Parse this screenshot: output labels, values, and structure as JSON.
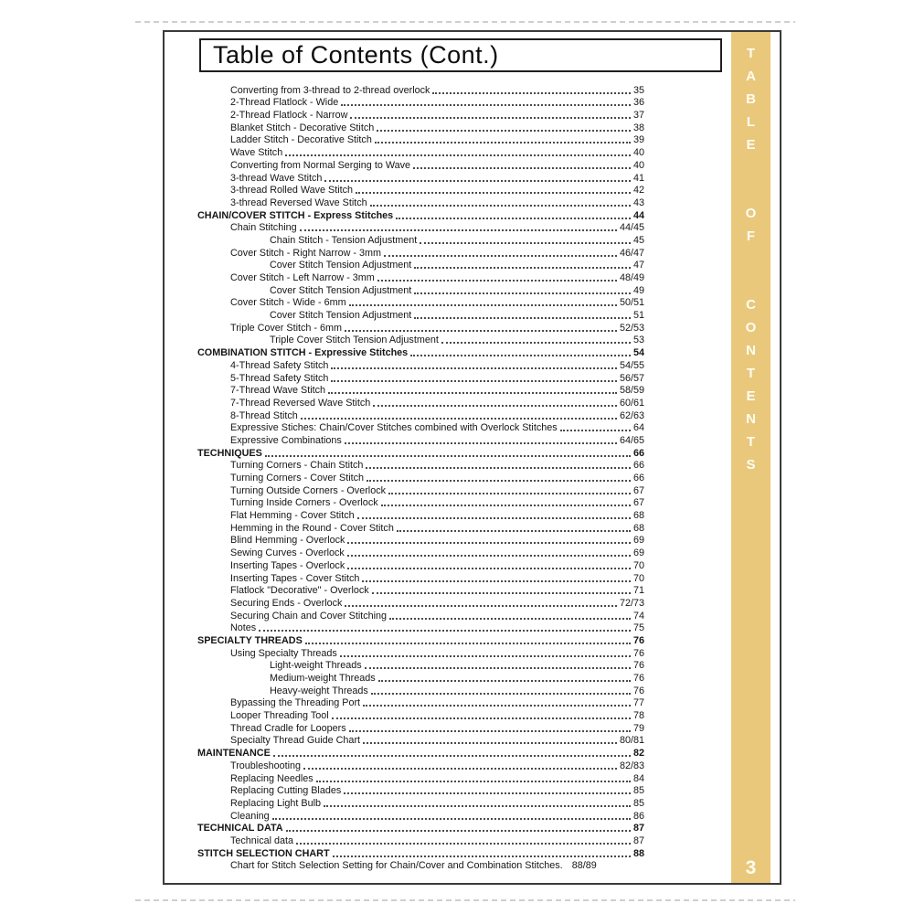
{
  "header": {
    "title": "Table of Contents (Cont.)"
  },
  "sidebar": {
    "vertical_title": "TABLE OF CONTENTS",
    "page_number": "3",
    "bar_color": "#e9c87c",
    "letter_color": "#fdfcf2"
  },
  "toc": {
    "entries": [
      {
        "label": "Converting from 3-thread to 2-thread overlock",
        "page": "35",
        "level": 1,
        "bold": false
      },
      {
        "label": "2-Thread Flatlock - Wide",
        "page": "36",
        "level": 1,
        "bold": false
      },
      {
        "label": "2-Thread Flatlock - Narrow",
        "page": "37",
        "level": 1,
        "bold": false
      },
      {
        "label": "Blanket Stitch - Decorative Stitch",
        "page": "38",
        "level": 1,
        "bold": false
      },
      {
        "label": "Ladder Stitch - Decorative Stitch",
        "page": "39",
        "level": 1,
        "bold": false
      },
      {
        "label": "Wave Stitch",
        "page": "40",
        "level": 1,
        "bold": false
      },
      {
        "label": "Converting from Normal Serging to Wave",
        "page": "40",
        "level": 1,
        "bold": false
      },
      {
        "label": "3-thread Wave Stitch",
        "page": "41",
        "level": 1,
        "bold": false
      },
      {
        "label": "3-thread Rolled Wave Stitch",
        "page": "42",
        "level": 1,
        "bold": false
      },
      {
        "label": "3-thread Reversed Wave Stitch",
        "page": "43",
        "level": 1,
        "bold": false
      },
      {
        "label": "CHAIN/COVER STITCH - Express Stitches",
        "page": "44",
        "level": 0,
        "bold": true
      },
      {
        "label": "Chain Stitching",
        "page": "44/45",
        "level": 1,
        "bold": false
      },
      {
        "label": "Chain Stitch - Tension Adjustment",
        "page": "45",
        "level": 2,
        "bold": false
      },
      {
        "label": "Cover Stitch - Right Narrow - 3mm",
        "page": "46/47",
        "level": 1,
        "bold": false
      },
      {
        "label": "Cover Stitch Tension Adjustment",
        "page": "47",
        "level": 2,
        "bold": false
      },
      {
        "label": "Cover Stitch - Left Narrow - 3mm",
        "page": "48/49",
        "level": 1,
        "bold": false
      },
      {
        "label": "Cover Stitch Tension Adjustment",
        "page": "49",
        "level": 2,
        "bold": false
      },
      {
        "label": "Cover Stitch - Wide - 6mm",
        "page": "50/51",
        "level": 1,
        "bold": false
      },
      {
        "label": "Cover Stitch Tension Adjustment",
        "page": "51",
        "level": 2,
        "bold": false
      },
      {
        "label": "Triple Cover Stitch - 6mm",
        "page": "52/53",
        "level": 1,
        "bold": false
      },
      {
        "label": "Triple Cover Stitch Tension Adjustment",
        "page": "53",
        "level": 2,
        "bold": false
      },
      {
        "label": "COMBINATION STITCH - Expressive Stitches",
        "page": "54",
        "level": 0,
        "bold": true
      },
      {
        "label": "4-Thread Safety Stitch",
        "page": "54/55",
        "level": 1,
        "bold": false
      },
      {
        "label": "5-Thread Safety Stitch",
        "page": "56/57",
        "level": 1,
        "bold": false
      },
      {
        "label": "7-Thread Wave Stitch",
        "page": "58/59",
        "level": 1,
        "bold": false
      },
      {
        "label": "7-Thread Reversed Wave Stitch",
        "page": "60/61",
        "level": 1,
        "bold": false
      },
      {
        "label": "8-Thread Stitch",
        "page": "62/63",
        "level": 1,
        "bold": false
      },
      {
        "label": "Expressive Stiches: Chain/Cover Stitches combined with Overlock Stitches",
        "page": "64",
        "level": 1,
        "bold": false
      },
      {
        "label": "Expressive Combinations",
        "page": "64/65",
        "level": 1,
        "bold": false
      },
      {
        "label": "TECHNIQUES",
        "page": "66",
        "level": 0,
        "bold": true
      },
      {
        "label": "Turning Corners - Chain Stitch",
        "page": "66",
        "level": 1,
        "bold": false
      },
      {
        "label": "Turning Corners - Cover Stitch",
        "page": "66",
        "level": 1,
        "bold": false
      },
      {
        "label": "Turning Outside Corners - Overlock",
        "page": "67",
        "level": 1,
        "bold": false
      },
      {
        "label": "Turning Inside Corners - Overlock",
        "page": "67",
        "level": 1,
        "bold": false
      },
      {
        "label": "Flat Hemming - Cover Stitch",
        "page": "68",
        "level": 1,
        "bold": false
      },
      {
        "label": "Hemming in the Round - Cover Stitch",
        "page": "68",
        "level": 1,
        "bold": false
      },
      {
        "label": "Blind Hemming - Overlock",
        "page": "69",
        "level": 1,
        "bold": false
      },
      {
        "label": "Sewing Curves - Overlock",
        "page": "69",
        "level": 1,
        "bold": false
      },
      {
        "label": "Inserting Tapes - Overlock",
        "page": "70",
        "level": 1,
        "bold": false
      },
      {
        "label": "Inserting Tapes - Cover Stitch",
        "page": "70",
        "level": 1,
        "bold": false
      },
      {
        "label": "Flatlock \"Decorative\" - Overlock",
        "page": "71",
        "level": 1,
        "bold": false
      },
      {
        "label": "Securing Ends - Overlock",
        "page": "72/73",
        "level": 1,
        "bold": false
      },
      {
        "label": "Securing Chain and Cover Stitching",
        "page": "74",
        "level": 1,
        "bold": false
      },
      {
        "label": "Notes",
        "page": "75",
        "level": 1,
        "bold": false
      },
      {
        "label": "SPECIALTY THREADS",
        "page": "76",
        "level": 0,
        "bold": true
      },
      {
        "label": "Using Specialty Threads",
        "page": "76",
        "level": 1,
        "bold": false
      },
      {
        "label": "Light-weight Threads",
        "page": "76",
        "level": 2,
        "bold": false
      },
      {
        "label": "Medium-weight Threads",
        "page": "76",
        "level": 2,
        "bold": false
      },
      {
        "label": "Heavy-weight Threads",
        "page": "76",
        "level": 2,
        "bold": false
      },
      {
        "label": "Bypassing the Threading Port",
        "page": "77",
        "level": 1,
        "bold": false
      },
      {
        "label": "Looper Threading Tool",
        "page": "78",
        "level": 1,
        "bold": false
      },
      {
        "label": "Thread Cradle for Loopers",
        "page": "79",
        "level": 1,
        "bold": false
      },
      {
        "label": "Specialty Thread Guide Chart",
        "page": "80/81",
        "level": 1,
        "bold": false
      },
      {
        "label": "MAINTENANCE",
        "page": "82",
        "level": 0,
        "bold": true
      },
      {
        "label": "Troubleshooting",
        "page": "82/83",
        "level": 1,
        "bold": false
      },
      {
        "label": "Replacing Needles",
        "page": "84",
        "level": 1,
        "bold": false
      },
      {
        "label": "Replacing Cutting Blades",
        "page": "85",
        "level": 1,
        "bold": false
      },
      {
        "label": "Replacing Light Bulb",
        "page": "85",
        "level": 1,
        "bold": false
      },
      {
        "label": "Cleaning",
        "page": "86",
        "level": 1,
        "bold": false
      },
      {
        "label": "TECHNICAL DATA",
        "page": "87",
        "level": 0,
        "bold": true
      },
      {
        "label": "Technical data",
        "page": "87",
        "level": 1,
        "bold": false
      },
      {
        "label": "STITCH SELECTION CHART",
        "page": "88",
        "level": 0,
        "bold": true
      },
      {
        "label": "Chart for Stitch Selection Setting for Chain/Cover and Combination Stitches.",
        "page": "88/89",
        "level": 1,
        "bold": false,
        "leader": false
      }
    ]
  }
}
